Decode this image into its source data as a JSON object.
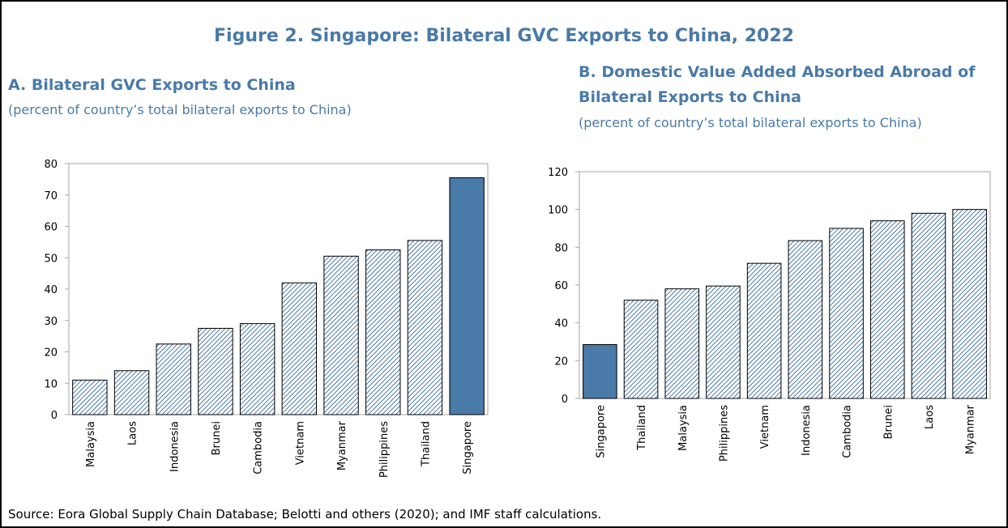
{
  "figure_title": "Figure 2. Singapore: Bilateral GVC Exports to China, 2022",
  "source": "Source: Eora Global Supply Chain Database; Belotti and others (2020); and IMF staff calculations.",
  "chart_data": [
    {
      "type": "bar",
      "title": [
        "A. Bilateral GVC Exports to China"
      ],
      "subtitle": "(percent of country’s total bilateral exports to China)",
      "categories": [
        "Malaysia",
        "Laos",
        "Indonesia",
        "Brunei",
        "Cambodia",
        "Vietnam",
        "Myanmar",
        "Philippines",
        "Thailand",
        "Singapore"
      ],
      "values": [
        11,
        14,
        22.5,
        27.5,
        29,
        42,
        50.5,
        52.5,
        55.5,
        75.5
      ],
      "colors": [
        "#4a7aa7",
        "#4a7aa7",
        "#4a7aa7",
        "#4a7aa7",
        "#4a7aa7",
        "#4a7aa7",
        "#4a7aa7",
        "#4a7aa7",
        "#4a7aa7",
        "#4a7aa7"
      ],
      "hatched": [
        true,
        true,
        true,
        true,
        true,
        true,
        true,
        true,
        true,
        false
      ],
      "ylim": [
        0,
        80
      ],
      "yticks": [
        0,
        10,
        20,
        30,
        40,
        50,
        60,
        70,
        80
      ],
      "grid": false
    },
    {
      "type": "bar",
      "title": [
        "B. Domestic Value Added Absorbed Abroad of",
        "Bilateral Exports to China"
      ],
      "subtitle": "(percent of country’s total bilateral exports to China)",
      "categories": [
        "Singapore",
        "Thailand",
        "Malaysia",
        "Philippines",
        "Vietnam",
        "Indonesia",
        "Cambodia",
        "Brunei",
        "Laos",
        "Myanmar"
      ],
      "values": [
        28.5,
        52,
        58,
        59.5,
        71.5,
        83.5,
        90,
        94,
        98,
        100
      ],
      "colors": [
        "#4a7aa7",
        "#4a7aa7",
        "#4a7aa7",
        "#4a7aa7",
        "#4a7aa7",
        "#4a7aa7",
        "#4a7aa7",
        "#4a7aa7",
        "#4a7aa7",
        "#4a7aa7"
      ],
      "hatched": [
        false,
        true,
        true,
        true,
        true,
        true,
        true,
        true,
        true,
        true
      ],
      "ylim": [
        0,
        120
      ],
      "yticks": [
        0,
        20,
        40,
        60,
        80,
        100,
        120
      ],
      "grid": false
    }
  ]
}
